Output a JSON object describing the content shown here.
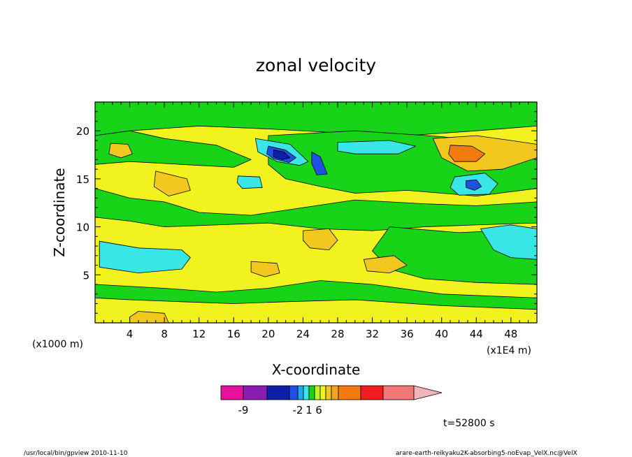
{
  "chart_data": {
    "type": "heatmap",
    "title": "zonal velocity",
    "xlabel": "X-coordinate",
    "ylabel": "Z-coordinate",
    "x_unit_left": "(x1000 m)",
    "x_unit_right": "(x1E4 m)",
    "x_ticks": [
      4,
      8,
      12,
      16,
      20,
      24,
      28,
      32,
      36,
      40,
      44,
      48
    ],
    "y_ticks": [
      5,
      10,
      15,
      20
    ],
    "xlim": [
      0,
      51
    ],
    "ylim": [
      0,
      23
    ],
    "colorbar": {
      "colors": [
        "#e6109c",
        "#8a1cb0",
        "#0f1ea8",
        "#1e50e6",
        "#1ea8f0",
        "#38e6e6",
        "#18d418",
        "#bff21e",
        "#f2f21e",
        "#f2c81e",
        "#f2a51e",
        "#f27a0e",
        "#f21e1e",
        "#f27878",
        "#f2b4b4"
      ],
      "tick_labels": [
        {
          "label": "-9",
          "boundary": 1
        },
        {
          "label": "-2",
          "boundary": 4
        },
        {
          "label": "1",
          "boundary": 6
        },
        {
          "label": "6",
          "boundary": 8
        }
      ]
    },
    "regions": [
      {
        "name": "top-green-band",
        "color": "#18d418",
        "points": [
          [
            0,
            23
          ],
          [
            51,
            23
          ],
          [
            51,
            20.5
          ],
          [
            44,
            20
          ],
          [
            36,
            19.5
          ],
          [
            28,
            19.8
          ],
          [
            20,
            20.2
          ],
          [
            12,
            20.5
          ],
          [
            4,
            20
          ],
          [
            0,
            19.5
          ]
        ]
      },
      {
        "name": "upper-left-green",
        "color": "#18d418",
        "points": [
          [
            0,
            19.5
          ],
          [
            4,
            20
          ],
          [
            8,
            19.2
          ],
          [
            14,
            18.5
          ],
          [
            18,
            17
          ],
          [
            16,
            16.2
          ],
          [
            10,
            16.5
          ],
          [
            4,
            16.8
          ],
          [
            0,
            16.5
          ]
        ]
      },
      {
        "name": "mid-green-wave",
        "color": "#18d418",
        "points": [
          [
            0,
            14
          ],
          [
            4,
            13
          ],
          [
            8,
            12.6
          ],
          [
            12,
            11.5
          ],
          [
            18,
            11.2
          ],
          [
            24,
            12
          ],
          [
            30,
            12.8
          ],
          [
            38,
            12.4
          ],
          [
            44,
            12.2
          ],
          [
            51,
            12.6
          ],
          [
            51,
            10.4
          ],
          [
            44,
            10.2
          ],
          [
            38,
            10
          ],
          [
            32,
            9.6
          ],
          [
            26,
            9.8
          ],
          [
            20,
            10.4
          ],
          [
            14,
            10.2
          ],
          [
            8,
            10
          ],
          [
            4,
            10.6
          ],
          [
            0,
            11
          ]
        ]
      },
      {
        "name": "upper-jet-green",
        "color": "#18d418",
        "points": [
          [
            20,
            19.5
          ],
          [
            30,
            20
          ],
          [
            40,
            19.4
          ],
          [
            48,
            18.5
          ],
          [
            51,
            17.5
          ],
          [
            51,
            14
          ],
          [
            44,
            13.2
          ],
          [
            36,
            13.8
          ],
          [
            30,
            13.5
          ],
          [
            26,
            14.2
          ],
          [
            22,
            15
          ],
          [
            20,
            16.5
          ]
        ]
      },
      {
        "name": "right-green",
        "color": "#18d418",
        "points": [
          [
            34,
            10
          ],
          [
            42,
            9.4
          ],
          [
            51,
            9.8
          ],
          [
            51,
            4
          ],
          [
            44,
            4.2
          ],
          [
            38,
            4.6
          ],
          [
            34,
            5.6
          ],
          [
            32,
            7.5
          ]
        ]
      },
      {
        "name": "left-cyan",
        "color": "#38e6e6",
        "points": [
          [
            0.5,
            8.5
          ],
          [
            5,
            7.8
          ],
          [
            10,
            7.6
          ],
          [
            11,
            6.8
          ],
          [
            10,
            5.6
          ],
          [
            5,
            5.2
          ],
          [
            0.5,
            5.8
          ]
        ]
      },
      {
        "name": "right-cyan",
        "color": "#38e6e6",
        "points": [
          [
            44.5,
            9.8
          ],
          [
            48,
            10.2
          ],
          [
            51,
            9.8
          ],
          [
            51,
            6.6
          ],
          [
            48,
            6.8
          ],
          [
            46,
            7.6
          ]
        ]
      },
      {
        "name": "lower-green-band",
        "color": "#18d418",
        "points": [
          [
            0,
            4
          ],
          [
            8,
            3.6
          ],
          [
            14,
            3.2
          ],
          [
            20,
            3.6
          ],
          [
            26,
            4.4
          ],
          [
            32,
            4
          ],
          [
            40,
            3
          ],
          [
            51,
            2.6
          ],
          [
            51,
            1.4
          ],
          [
            40,
            1.8
          ],
          [
            30,
            2.4
          ],
          [
            22,
            2.2
          ],
          [
            16,
            2
          ],
          [
            10,
            2.2
          ],
          [
            4,
            2.4
          ],
          [
            0,
            2.6
          ]
        ]
      },
      {
        "name": "jet-cyan-1",
        "color": "#38e6e6",
        "points": [
          [
            18.5,
            19.2
          ],
          [
            22.5,
            18.6
          ],
          [
            24.6,
            16.8
          ],
          [
            23.6,
            16.4
          ],
          [
            21,
            16.8
          ],
          [
            18.8,
            17.8
          ]
        ]
      },
      {
        "name": "jet-cyan-2",
        "color": "#38e6e6",
        "points": [
          [
            28,
            18.8
          ],
          [
            34,
            19
          ],
          [
            37,
            18.4
          ],
          [
            35,
            17.6
          ],
          [
            30,
            17.6
          ],
          [
            28,
            17.9
          ]
        ]
      },
      {
        "name": "right-cyan-upper",
        "color": "#38e6e6",
        "points": [
          [
            41.5,
            15.2
          ],
          [
            45,
            15.6
          ],
          [
            46.5,
            14.5
          ],
          [
            45.5,
            13.4
          ],
          [
            42,
            13.3
          ],
          [
            41,
            14.1
          ]
        ]
      },
      {
        "name": "small-cyan-mid",
        "color": "#38e6e6",
        "points": [
          [
            16.5,
            15.3
          ],
          [
            19,
            15.2
          ],
          [
            19.3,
            14.1
          ],
          [
            17,
            14
          ],
          [
            16.4,
            14.6
          ]
        ]
      },
      {
        "name": "jet-blue-1",
        "color": "#1e50e6",
        "points": [
          [
            20,
            18.4
          ],
          [
            22,
            18
          ],
          [
            23.2,
            17.2
          ],
          [
            22.4,
            16.7
          ],
          [
            20.6,
            17.1
          ],
          [
            19.8,
            17.6
          ]
        ]
      },
      {
        "name": "jet-blue-2",
        "color": "#1e50e6",
        "points": [
          [
            25,
            17.8
          ],
          [
            26,
            17.3
          ],
          [
            26.8,
            15.5
          ],
          [
            25.6,
            15.4
          ],
          [
            25,
            16.6
          ]
        ]
      },
      {
        "name": "jet-dark-blue",
        "color": "#0f1ea8",
        "points": [
          [
            20.6,
            18
          ],
          [
            21.8,
            17.8
          ],
          [
            22.5,
            17.2
          ],
          [
            21.6,
            17
          ],
          [
            20.6,
            17.3
          ]
        ]
      },
      {
        "name": "right-blue",
        "color": "#1e50e6",
        "points": [
          [
            42.8,
            14.8
          ],
          [
            44,
            14.9
          ],
          [
            44.6,
            14.2
          ],
          [
            43.8,
            13.8
          ],
          [
            42.8,
            14.1
          ]
        ]
      },
      {
        "name": "left-orange-upper",
        "color": "#f2c81e",
        "points": [
          [
            1.8,
            18.7
          ],
          [
            3.8,
            18.6
          ],
          [
            4.3,
            17.6
          ],
          [
            3,
            17.2
          ],
          [
            1.6,
            17.6
          ]
        ]
      },
      {
        "name": "left-orange-lower",
        "color": "#f2c81e",
        "points": [
          [
            7,
            15.8
          ],
          [
            10.6,
            15
          ],
          [
            11,
            13.8
          ],
          [
            8.5,
            13.2
          ],
          [
            6.8,
            14.2
          ]
        ]
      },
      {
        "name": "right-orange-large",
        "color": "#f2c81e",
        "points": [
          [
            39,
            19.2
          ],
          [
            44,
            19.5
          ],
          [
            48,
            19
          ],
          [
            51,
            18.6
          ],
          [
            51,
            17.2
          ],
          [
            47,
            16
          ],
          [
            43,
            15.8
          ],
          [
            40,
            17.2
          ]
        ]
      },
      {
        "name": "right-orange-deep",
        "color": "#f27a0e",
        "points": [
          [
            41,
            18.5
          ],
          [
            43.5,
            18.4
          ],
          [
            45,
            17.6
          ],
          [
            44,
            16.8
          ],
          [
            41.5,
            16.8
          ],
          [
            40.8,
            17.6
          ]
        ]
      },
      {
        "name": "mid-orange",
        "color": "#f2c81e",
        "points": [
          [
            24,
            9.6
          ],
          [
            27,
            9.8
          ],
          [
            28,
            8.6
          ],
          [
            27,
            7.6
          ],
          [
            24.8,
            7.8
          ],
          [
            24,
            8.6
          ]
        ]
      },
      {
        "name": "lower-orange-1",
        "color": "#f2c81e",
        "points": [
          [
            18,
            6.4
          ],
          [
            21,
            6.2
          ],
          [
            21.3,
            5.2
          ],
          [
            19.6,
            4.8
          ],
          [
            18,
            5.3
          ]
        ]
      },
      {
        "name": "lower-orange-2",
        "color": "#f2c81e",
        "points": [
          [
            31,
            6.6
          ],
          [
            34.5,
            7
          ],
          [
            36,
            6
          ],
          [
            34,
            5.2
          ],
          [
            31.4,
            5.4
          ]
        ]
      },
      {
        "name": "bottom-orange",
        "color": "#f2c81e",
        "points": [
          [
            5,
            1.2
          ],
          [
            8,
            1
          ],
          [
            8.5,
            0
          ],
          [
            4,
            0
          ],
          [
            4,
            0.6
          ]
        ]
      }
    ]
  },
  "footer": {
    "time_label": "t=52800 s",
    "left": "/usr/local/bin/gpview  2010-11-10",
    "right": "arare-earth-reikyaku2K-absorbing5-noEvap_VelX.nc@VelX"
  }
}
